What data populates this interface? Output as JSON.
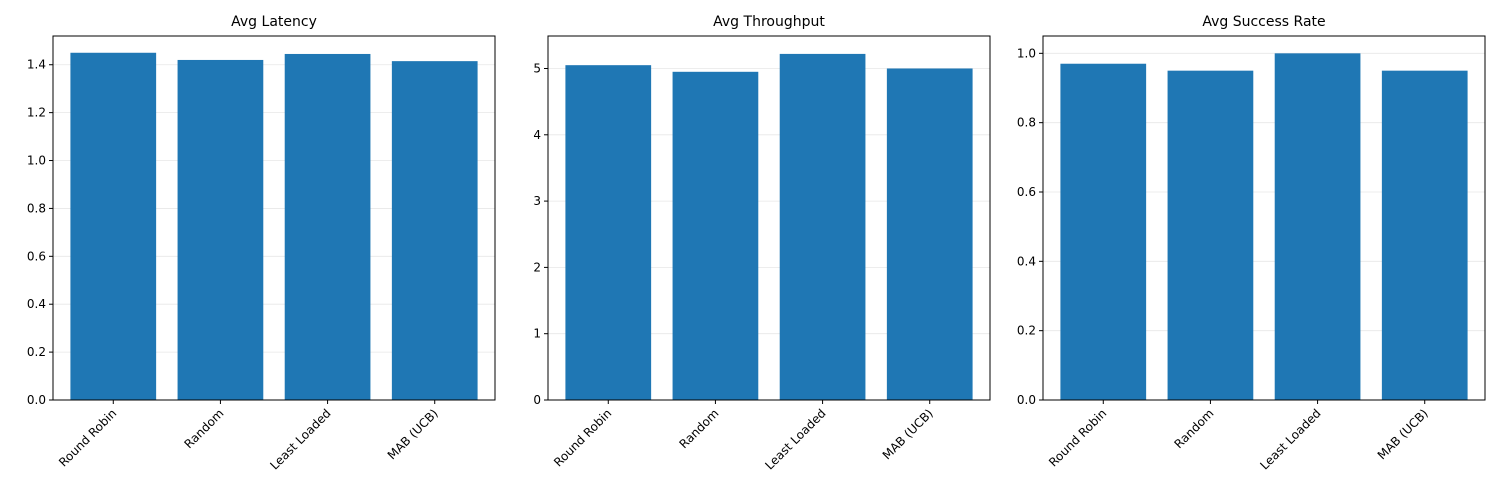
{
  "chart_data": [
    {
      "type": "bar",
      "title": "Avg Latency",
      "categories": [
        "Round Robin",
        "Random",
        "Least Loaded",
        "MAB (UCB)"
      ],
      "values": [
        1.45,
        1.42,
        1.445,
        1.415
      ],
      "ylim": [
        0,
        1.52
      ],
      "yticks": [
        0.0,
        0.2,
        0.4,
        0.6,
        0.8,
        1.0,
        1.2,
        1.4
      ],
      "ytick_labels": [
        "0.0",
        "0.2",
        "0.4",
        "0.6",
        "0.8",
        "1.0",
        "1.2",
        "1.4"
      ],
      "grid": "y",
      "color": "#1f77b4"
    },
    {
      "type": "bar",
      "title": "Avg Throughput",
      "categories": [
        "Round Robin",
        "Random",
        "Least Loaded",
        "MAB (UCB)"
      ],
      "values": [
        5.05,
        4.95,
        5.22,
        5.0
      ],
      "ylim": [
        0,
        5.49
      ],
      "yticks": [
        0,
        1,
        2,
        3,
        4,
        5
      ],
      "ytick_labels": [
        "0",
        "1",
        "2",
        "3",
        "4",
        "5"
      ],
      "grid": "y",
      "color": "#1f77b4"
    },
    {
      "type": "bar",
      "title": "Avg Success Rate",
      "categories": [
        "Round Robin",
        "Random",
        "Least Loaded",
        "MAB (UCB)"
      ],
      "values": [
        0.97,
        0.95,
        1.0,
        0.95
      ],
      "ylim": [
        0,
        1.05
      ],
      "yticks": [
        0.0,
        0.2,
        0.4,
        0.6,
        0.8,
        1.0
      ],
      "ytick_labels": [
        "0.0",
        "0.2",
        "0.4",
        "0.6",
        "0.8",
        "1.0"
      ],
      "grid": "y",
      "color": "#1f77b4"
    }
  ]
}
